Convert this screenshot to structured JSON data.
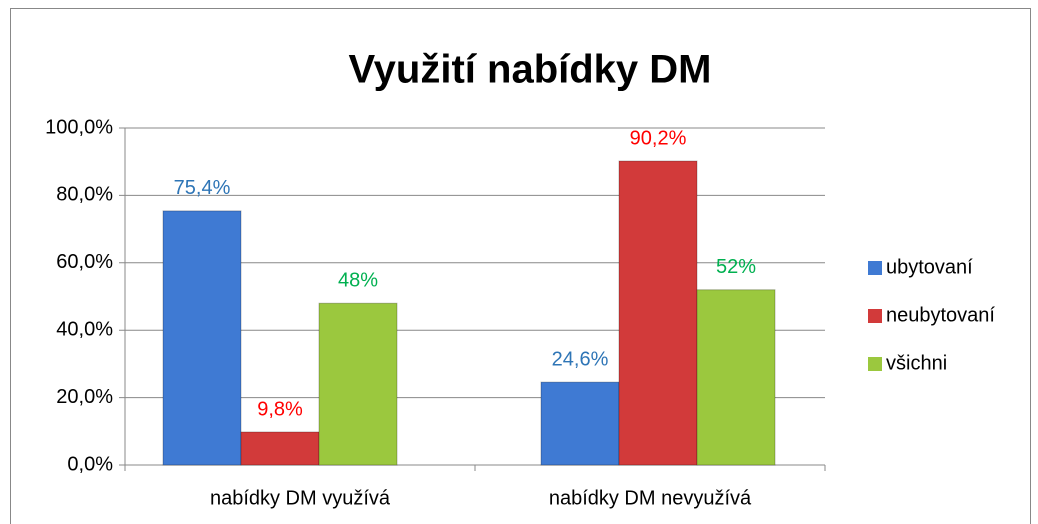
{
  "chart_data": {
    "type": "bar",
    "title": "Využití nabídky DM",
    "categories": [
      "nabídky DM využívá",
      "nabídky DM nevyužívá"
    ],
    "series": [
      {
        "name": "ubytovaní",
        "color": "#3f7ad3",
        "label_color": "#2e75b6",
        "values": [
          75.4,
          24.6
        ],
        "value_labels": [
          "75,4%",
          "24,6%"
        ]
      },
      {
        "name": "neubytovaní",
        "color": "#d23a3a",
        "label_color": "#ff0000",
        "values": [
          9.8,
          90.2
        ],
        "value_labels": [
          "9,8%",
          "90,2%"
        ]
      },
      {
        "name": "všichni",
        "color": "#9bc83e",
        "label_color": "#00b050",
        "values": [
          48,
          52
        ],
        "value_labels": [
          "48%",
          "52%"
        ]
      }
    ],
    "ylim": [
      0,
      100
    ],
    "yticks": [
      {
        "value": 0,
        "label": "0,0%"
      },
      {
        "value": 20,
        "label": "20,0%"
      },
      {
        "value": 40,
        "label": "40,0%"
      },
      {
        "value": 60,
        "label": "60,0%"
      },
      {
        "value": 80,
        "label": "80,0%"
      },
      {
        "value": 100,
        "label": "100,0%"
      }
    ],
    "grid": true,
    "legend": "right"
  }
}
